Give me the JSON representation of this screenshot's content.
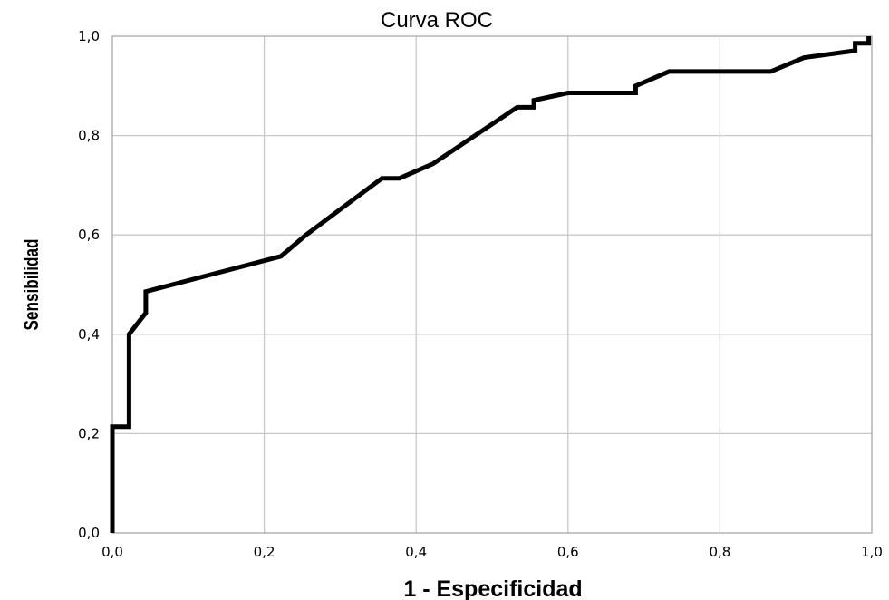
{
  "chart_data": {
    "type": "line",
    "title": "Curva ROC",
    "xlabel": "1 - Especificidad",
    "ylabel": "Sensibilidad",
    "xlim": [
      0,
      1
    ],
    "ylim": [
      0,
      1
    ],
    "x_ticks": [
      "0,0",
      "0,2",
      "0,4",
      "0,6",
      "0,8",
      "1,0"
    ],
    "y_ticks": [
      "0,0",
      "0,2",
      "0,4",
      "0,6",
      "0,8",
      "1,0"
    ],
    "grid": true,
    "legend": "none",
    "series": [
      {
        "color": "#000000",
        "x": [
          0.0,
          0.0,
          0.022,
          0.022,
          0.044,
          0.044,
          0.044,
          0.222,
          0.255,
          0.355,
          0.378,
          0.422,
          0.533,
          0.555,
          0.555,
          0.6,
          0.689,
          0.689,
          0.733,
          0.867,
          0.911,
          0.978,
          0.978,
          0.996,
          0.996
        ],
        "y": [
          0.0,
          0.214,
          0.214,
          0.4,
          0.443,
          0.471,
          0.486,
          0.557,
          0.6,
          0.714,
          0.714,
          0.743,
          0.857,
          0.857,
          0.871,
          0.886,
          0.886,
          0.9,
          0.929,
          0.929,
          0.957,
          0.971,
          0.986,
          0.986,
          1.0
        ]
      }
    ]
  }
}
